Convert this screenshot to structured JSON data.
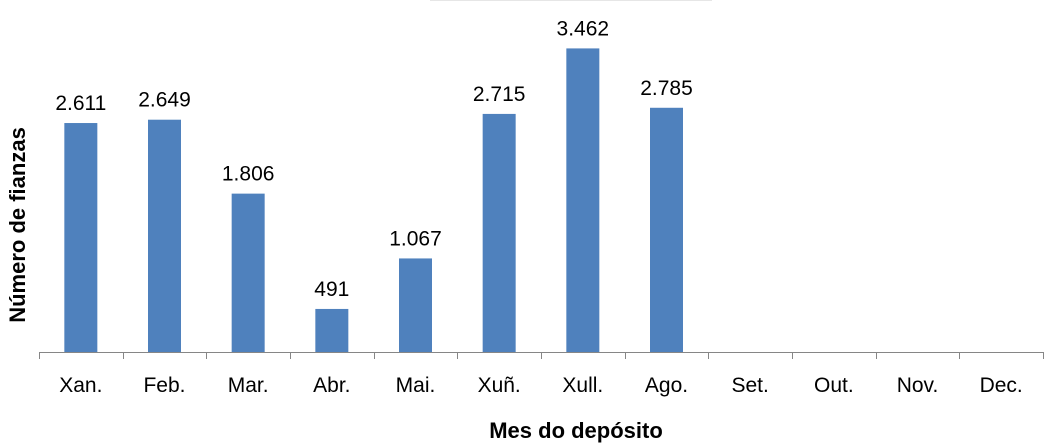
{
  "chart_data": {
    "type": "bar",
    "title": "",
    "xlabel": "Mes do depósito",
    "ylabel": "Número de fianzas",
    "categories": [
      "Xan.",
      "Feb.",
      "Mar.",
      "Abr.",
      "Mai.",
      "Xuñ.",
      "Xull.",
      "Ago.",
      "Set.",
      "Out.",
      "Nov.",
      "Dec."
    ],
    "values": [
      2611,
      2649,
      1806,
      491,
      1067,
      2715,
      3462,
      2785,
      null,
      null,
      null,
      null
    ],
    "value_labels": [
      "2.611",
      "2.649",
      "1.806",
      "491",
      "1.067",
      "2.715",
      "3.462",
      "2.785",
      "",
      "",
      "",
      ""
    ],
    "ylim": [
      0,
      3900
    ],
    "grid": false,
    "legend": "none",
    "bar_color": "#4f81bd"
  }
}
